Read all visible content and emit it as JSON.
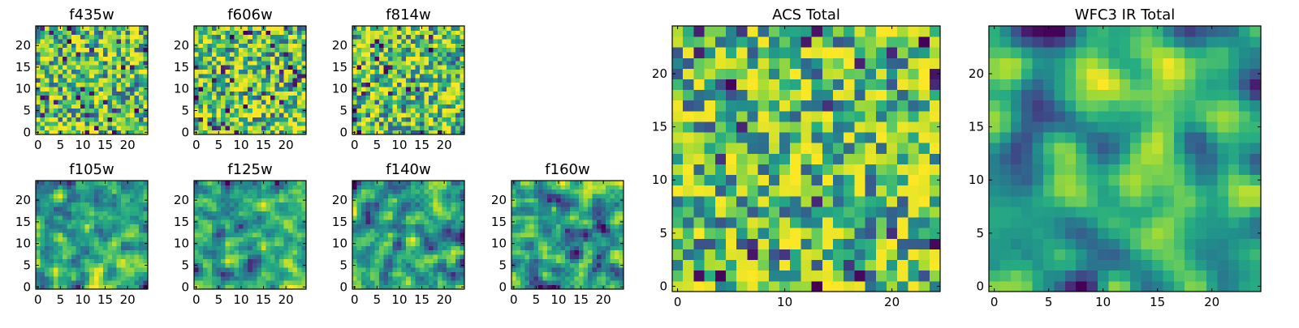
{
  "chart_data": [
    {
      "type": "heatmap",
      "title": "f435w",
      "grid_size": 25,
      "x_ticks": [
        0,
        5,
        10,
        15,
        20
      ],
      "y_ticks": [
        0,
        5,
        10,
        15,
        20
      ],
      "xlim": [
        -0.5,
        24.5
      ],
      "ylim": [
        -0.5,
        24.5
      ],
      "colormap": "viridis",
      "seed": 11,
      "smooth": 0,
      "grid": false
    },
    {
      "type": "heatmap",
      "title": "f606w",
      "grid_size": 25,
      "x_ticks": [
        0,
        5,
        10,
        15,
        20
      ],
      "y_ticks": [
        0,
        5,
        10,
        15,
        20
      ],
      "xlim": [
        -0.5,
        24.5
      ],
      "ylim": [
        -0.5,
        24.5
      ],
      "colormap": "viridis",
      "seed": 23,
      "smooth": 0,
      "grid": false
    },
    {
      "type": "heatmap",
      "title": "f814w",
      "grid_size": 25,
      "x_ticks": [
        0,
        5,
        10,
        15,
        20
      ],
      "y_ticks": [
        0,
        5,
        10,
        15,
        20
      ],
      "xlim": [
        -0.5,
        24.5
      ],
      "ylim": [
        -0.5,
        24.5
      ],
      "colormap": "viridis",
      "seed": 37,
      "smooth": 0,
      "grid": false
    },
    {
      "type": "heatmap",
      "title": "f105w",
      "grid_size": 25,
      "x_ticks": [
        0,
        5,
        10,
        15,
        20
      ],
      "y_ticks": [
        0,
        5,
        10,
        15,
        20
      ],
      "xlim": [
        -0.5,
        24.5
      ],
      "ylim": [
        -0.5,
        24.5
      ],
      "colormap": "viridis",
      "seed": 41,
      "smooth": 1,
      "grid": false
    },
    {
      "type": "heatmap",
      "title": "f125w",
      "grid_size": 25,
      "x_ticks": [
        0,
        5,
        10,
        15,
        20
      ],
      "y_ticks": [
        0,
        5,
        10,
        15,
        20
      ],
      "xlim": [
        -0.5,
        24.5
      ],
      "ylim": [
        -0.5,
        24.5
      ],
      "colormap": "viridis",
      "seed": 53,
      "smooth": 1,
      "grid": false
    },
    {
      "type": "heatmap",
      "title": "f140w",
      "grid_size": 25,
      "x_ticks": [
        0,
        5,
        10,
        15,
        20
      ],
      "y_ticks": [
        0,
        5,
        10,
        15,
        20
      ],
      "xlim": [
        -0.5,
        24.5
      ],
      "ylim": [
        -0.5,
        24.5
      ],
      "colormap": "viridis",
      "seed": 67,
      "smooth": 1,
      "grid": false
    },
    {
      "type": "heatmap",
      "title": "f160w",
      "grid_size": 25,
      "x_ticks": [
        0,
        5,
        10,
        15,
        20
      ],
      "y_ticks": [
        0,
        5,
        10,
        15,
        20
      ],
      "xlim": [
        -0.5,
        24.5
      ],
      "ylim": [
        -0.5,
        24.5
      ],
      "colormap": "viridis",
      "seed": 79,
      "smooth": 1,
      "grid": false
    },
    {
      "type": "heatmap",
      "title": "ACS Total",
      "grid_size": 25,
      "x_ticks": [
        0,
        10,
        20
      ],
      "y_ticks": [
        0,
        5,
        10,
        15,
        20
      ],
      "xlim": [
        -0.5,
        24.5
      ],
      "ylim": [
        -0.5,
        24.5
      ],
      "colormap": "viridis",
      "seed": 97,
      "smooth": 0,
      "grid": false
    },
    {
      "type": "heatmap",
      "title": "WFC3 IR Total",
      "grid_size": 25,
      "x_ticks": [
        0,
        5,
        10,
        15,
        20
      ],
      "y_ticks": [
        0,
        5,
        10,
        15,
        20
      ],
      "xlim": [
        -0.5,
        24.5
      ],
      "ylim": [
        -0.5,
        24.5
      ],
      "colormap": "viridis",
      "seed": 113,
      "smooth": 2,
      "grid": false
    }
  ]
}
